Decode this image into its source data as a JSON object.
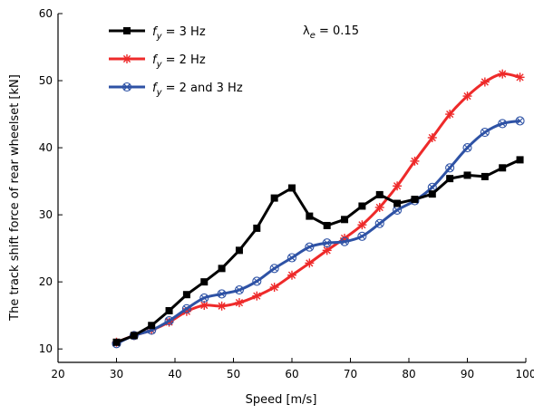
{
  "chart_data": {
    "type": "line",
    "title": "",
    "xlabel": "Speed [m/s]",
    "ylabel": "The track shift force of rear wheelset [kN]",
    "xlim": [
      20,
      100
    ],
    "ylim": [
      8,
      60
    ],
    "xticks": [
      20,
      30,
      40,
      50,
      60,
      70,
      80,
      90,
      100
    ],
    "yticks": [
      10,
      20,
      30,
      40,
      50,
      60
    ],
    "grid": false,
    "legend_position": "top-left",
    "annotation": {
      "symbol": "λ",
      "subscript": "e",
      "text": " = 0.15"
    },
    "series": [
      {
        "name": "f_y = 3 Hz",
        "label_symbol": "f",
        "label_sub": "y",
        "label_rest": " = 3 Hz",
        "color": "#000000",
        "marker": "square",
        "x": [
          30,
          33,
          36,
          39,
          42,
          45,
          48,
          51,
          54,
          57,
          60,
          63,
          66,
          69,
          72,
          75,
          78,
          81,
          84,
          87,
          90,
          93,
          96,
          99
        ],
        "y": [
          11,
          12,
          13.5,
          15.7,
          18.1,
          20,
          22,
          24.7,
          28,
          32.5,
          34,
          29.8,
          28.4,
          29.3,
          31.3,
          33,
          31.7,
          32.3,
          33.1,
          35.4,
          35.9,
          35.7,
          37,
          38.2
        ]
      },
      {
        "name": "f_y = 2 Hz",
        "label_symbol": "f",
        "label_sub": "y",
        "label_rest": " = 2 Hz",
        "color": "#ee2a2a",
        "marker": "asterisk",
        "x": [
          30,
          33,
          36,
          39,
          42,
          45,
          48,
          51,
          54,
          57,
          60,
          63,
          66,
          69,
          72,
          75,
          78,
          81,
          84,
          87,
          90,
          93,
          96,
          99
        ],
        "y": [
          11,
          12,
          12.8,
          14,
          15.6,
          16.5,
          16.4,
          16.9,
          17.9,
          19.2,
          21,
          22.8,
          24.7,
          26.5,
          28.5,
          31.1,
          34.3,
          38,
          41.5,
          45,
          47.7,
          49.8,
          51,
          50.5
        ]
      },
      {
        "name": "f_y = 2 and 3 Hz",
        "label_symbol": "f",
        "label_sub": "y",
        "label_rest": " = 2 and 3 Hz",
        "color": "#2e52a5",
        "marker": "circle-x",
        "x": [
          30,
          33,
          36,
          39,
          42,
          45,
          48,
          51,
          54,
          57,
          60,
          63,
          66,
          69,
          72,
          75,
          78,
          81,
          84,
          87,
          90,
          93,
          96,
          99
        ],
        "y": [
          10.8,
          12,
          12.8,
          14.2,
          16,
          17.6,
          18.2,
          18.8,
          20.1,
          22,
          23.6,
          25.2,
          25.8,
          26,
          26.8,
          28.7,
          30.7,
          32.1,
          34.1,
          37,
          40,
          42.3,
          43.6,
          44
        ]
      }
    ]
  }
}
